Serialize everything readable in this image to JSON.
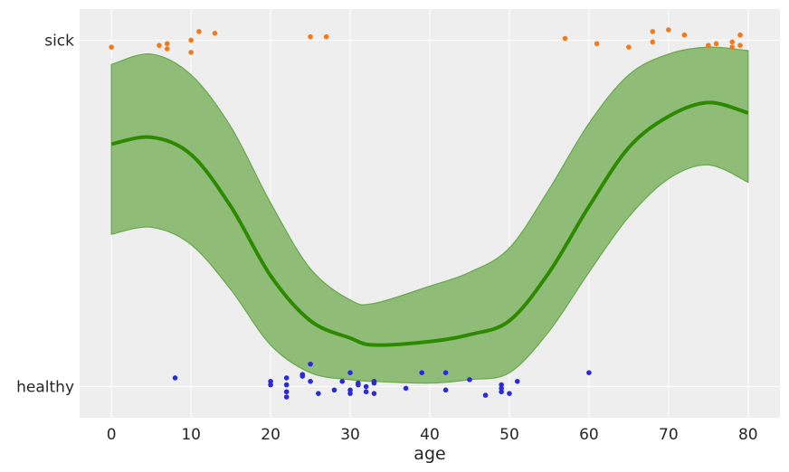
{
  "chart_data": {
    "type": "scatter",
    "xlabel": "age",
    "ylabel": "",
    "xlim": [
      -4,
      84
    ],
    "ylim": [
      -0.09,
      1.09
    ],
    "xticks": [
      0,
      10,
      20,
      30,
      40,
      50,
      60,
      70,
      80
    ],
    "yticks": [
      {
        "value": 0,
        "label": "healthy"
      },
      {
        "value": 1,
        "label": "sick"
      }
    ],
    "grid": true,
    "colors": {
      "background": "#eeeeee",
      "grid": "#ffffff",
      "healthy_points": "#2a2adb",
      "sick_points": "#f07a1e",
      "mean_line": "#2d8a00",
      "band_fill": "#8fbc76",
      "band_edge": "#6aa84f"
    },
    "mean_curve": {
      "x": [
        0,
        5,
        10,
        15,
        20,
        25,
        30,
        33,
        40,
        45,
        50,
        55,
        60,
        65,
        70,
        75,
        80
      ],
      "y": [
        0.7,
        0.72,
        0.67,
        0.52,
        0.32,
        0.19,
        0.14,
        0.12,
        0.13,
        0.15,
        0.19,
        0.33,
        0.52,
        0.69,
        0.78,
        0.82,
        0.79
      ]
    },
    "band_upper": {
      "x": [
        0,
        5,
        10,
        15,
        20,
        25,
        30,
        33,
        40,
        45,
        50,
        55,
        60,
        65,
        70,
        75,
        80
      ],
      "y": [
        0.93,
        0.96,
        0.9,
        0.75,
        0.53,
        0.34,
        0.25,
        0.24,
        0.29,
        0.33,
        0.4,
        0.57,
        0.76,
        0.9,
        0.96,
        0.98,
        0.97
      ]
    },
    "band_lower": {
      "x": [
        0,
        5,
        10,
        15,
        20,
        25,
        30,
        33,
        40,
        45,
        50,
        55,
        60,
        65,
        70,
        75,
        80
      ],
      "y": [
        0.44,
        0.46,
        0.41,
        0.28,
        0.12,
        0.04,
        0.02,
        0.015,
        0.01,
        0.02,
        0.04,
        0.16,
        0.33,
        0.49,
        0.6,
        0.64,
        0.59
      ]
    },
    "series": [
      {
        "name": "",
        "class": "healthy",
        "points": [
          [
            8,
            0.025
          ],
          [
            20,
            0.015
          ],
          [
            20,
            0.005
          ],
          [
            22,
            0.025
          ],
          [
            22,
            0.005
          ],
          [
            22,
            -0.015
          ],
          [
            22,
            -0.03
          ],
          [
            24,
            0.035
          ],
          [
            24,
            0.03
          ],
          [
            25,
            0.065
          ],
          [
            25,
            0.015
          ],
          [
            26,
            -0.02
          ],
          [
            28,
            -0.01
          ],
          [
            29,
            0.015
          ],
          [
            30,
            0.04
          ],
          [
            30,
            -0.01
          ],
          [
            30,
            -0.02
          ],
          [
            31,
            0.01
          ],
          [
            31,
            0.005
          ],
          [
            32,
            0.0
          ],
          [
            32,
            -0.015
          ],
          [
            33,
            0.015
          ],
          [
            33,
            0.01
          ],
          [
            33,
            -0.02
          ],
          [
            37,
            -0.005
          ],
          [
            39,
            0.04
          ],
          [
            42,
            0.04
          ],
          [
            42,
            -0.01
          ],
          [
            45,
            0.02
          ],
          [
            47,
            -0.025
          ],
          [
            49,
            0.005
          ],
          [
            49,
            -0.005
          ],
          [
            49,
            -0.015
          ],
          [
            50,
            -0.02
          ],
          [
            51,
            0.015
          ],
          [
            60,
            0.04
          ]
        ]
      },
      {
        "name": "",
        "class": "sick",
        "points": [
          [
            0,
            0.98
          ],
          [
            6,
            0.985
          ],
          [
            7,
            0.99
          ],
          [
            7,
            0.975
          ],
          [
            10,
            1.0
          ],
          [
            10,
            0.965
          ],
          [
            11,
            1.025
          ],
          [
            13,
            1.02
          ],
          [
            25,
            1.01
          ],
          [
            27,
            1.01
          ],
          [
            57,
            1.005
          ],
          [
            61,
            0.99
          ],
          [
            65,
            0.98
          ],
          [
            68,
            1.025
          ],
          [
            68,
            0.995
          ],
          [
            70,
            1.03
          ],
          [
            72,
            1.015
          ],
          [
            75,
            0.985
          ],
          [
            76,
            0.99
          ],
          [
            78,
            0.995
          ],
          [
            78,
            0.98
          ],
          [
            79,
            1.015
          ],
          [
            79,
            0.985
          ]
        ]
      }
    ]
  }
}
